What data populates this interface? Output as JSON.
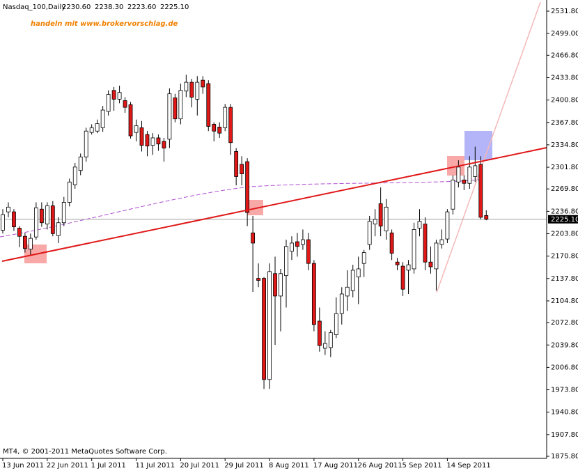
{
  "chart_data": {
    "type": "candlestick",
    "symbol": "Nasdaq_100,Daily",
    "header_values": [
      "2230.60",
      "2238.30",
      "2223.60",
      "2225.10"
    ],
    "watermark": "handeln mit www.brokervorschlag.de",
    "copyright": "MT4, © 2001-2011 MetaQuotes Software Corp.",
    "up_color": "#ffffff",
    "down_color": "#e01818",
    "categories": [
      "13 Jun 2011",
      null,
      null,
      null,
      null,
      null,
      null,
      null,
      "22 Jun 2011",
      null,
      null,
      null,
      null,
      null,
      null,
      null,
      "1 Jul 2011",
      null,
      null,
      null,
      null,
      null,
      null,
      null,
      "11 Jul 2011",
      null,
      null,
      null,
      null,
      null,
      null,
      null,
      "20 Jul 2011",
      null,
      null,
      null,
      null,
      null,
      null,
      null,
      "29 Jul 2011",
      null,
      null,
      null,
      null,
      null,
      null,
      null,
      "8 Aug 2011",
      null,
      null,
      null,
      null,
      null,
      null,
      null,
      "17 Aug 2011",
      null,
      null,
      null,
      null,
      null,
      null,
      null,
      "26 Aug 2011",
      null,
      null,
      null,
      null,
      null,
      null,
      null,
      "5 Sep 2011",
      null,
      null,
      null,
      null,
      null,
      null,
      null,
      "14 Sep 2011",
      null,
      null,
      null,
      null,
      null,
      null,
      null
    ],
    "open": [
      2209,
      2236,
      2236,
      2212,
      2200,
      2181,
      2199,
      2240,
      2218,
      2245,
      2201,
      2220,
      2250,
      2276,
      2297,
      2317,
      2353,
      2355,
      2360,
      2384,
      2415,
      2402,
      2400,
      2394,
      2353,
      2360,
      2350,
      2334,
      2345,
      2340,
      2343,
      2404,
      2373,
      2414,
      2427,
      2402,
      2430,
      2425,
      2365,
      2361,
      2360,
      2390,
      2325,
      2306,
      2310,
      2205,
      2138,
      2138,
      1989,
      2145,
      2112,
      2142,
      2178,
      2192,
      2188,
      2195,
      2160,
      2075,
      2035,
      2036,
      2055,
      2086,
      2112,
      2120,
      2140,
      2160,
      2188,
      2218,
      2248,
      2208,
      2205,
      2162,
      2156,
      2150,
      2152,
      2212,
      2218,
      2162,
      2152,
      2188,
      2196,
      2240,
      2280,
      2283,
      2278,
      2288,
      2306,
      2230.6
    ],
    "high": [
      2240,
      2250,
      2240,
      2215,
      2205,
      2204,
      2250,
      2250,
      2250,
      2252,
      2228,
      2258,
      2285,
      2308,
      2322,
      2360,
      2365,
      2372,
      2392,
      2415,
      2420,
      2422,
      2405,
      2398,
      2372,
      2370,
      2355,
      2352,
      2350,
      2345,
      2418,
      2410,
      2425,
      2438,
      2432,
      2436,
      2436,
      2430,
      2368,
      2368,
      2395,
      2395,
      2330,
      2318,
      2315,
      2230,
      2160,
      2140,
      2160,
      2170,
      2152,
      2195,
      2200,
      2205,
      2210,
      2205,
      2165,
      2095,
      2060,
      2062,
      2110,
      2125,
      2150,
      2158,
      2170,
      2180,
      2230,
      2240,
      2272,
      2255,
      2210,
      2168,
      2162,
      2165,
      2220,
      2240,
      2228,
      2185,
      2195,
      2210,
      2240,
      2290,
      2312,
      2290,
      2318,
      2332,
      2318,
      2238.3
    ],
    "low": [
      2204,
      2228,
      2208,
      2184,
      2176,
      2173,
      2195,
      2214,
      2210,
      2200,
      2190,
      2215,
      2244,
      2270,
      2290,
      2310,
      2350,
      2352,
      2354,
      2378,
      2385,
      2396,
      2382,
      2344,
      2340,
      2325,
      2318,
      2320,
      2326,
      2310,
      2330,
      2368,
      2365,
      2405,
      2390,
      2378,
      2410,
      2355,
      2340,
      2345,
      2355,
      2320,
      2275,
      2275,
      2215,
      2118,
      2125,
      1975,
      1975,
      2040,
      2060,
      2095,
      2165,
      2170,
      2180,
      2150,
      2060,
      2030,
      2025,
      2022,
      2050,
      2070,
      2090,
      2110,
      2100,
      2140,
      2180,
      2200,
      2200,
      2195,
      2165,
      2150,
      2112,
      2115,
      2145,
      2200,
      2150,
      2145,
      2120,
      2182,
      2190,
      2232,
      2272,
      2268,
      2270,
      2280,
      2225,
      2223.6
    ],
    "close": [
      2232,
      2243,
      2214,
      2200,
      2182,
      2197,
      2242,
      2220,
      2245,
      2204,
      2220,
      2250,
      2280,
      2302,
      2317,
      2355,
      2360,
      2366,
      2386,
      2409,
      2402,
      2412,
      2390,
      2348,
      2363,
      2334,
      2333,
      2345,
      2336,
      2330,
      2410,
      2373,
      2415,
      2427,
      2405,
      2427,
      2420,
      2362,
      2355,
      2352,
      2390,
      2338,
      2288,
      2292,
      2235,
      2190,
      2135,
      1989,
      2148,
      2112,
      2145,
      2185,
      2190,
      2185,
      2195,
      2160,
      2070,
      2039,
      2042,
      2058,
      2086,
      2115,
      2125,
      2150,
      2152,
      2176,
      2222,
      2225,
      2215,
      2243,
      2175,
      2158,
      2122,
      2158,
      2210,
      2222,
      2162,
      2155,
      2190,
      2195,
      2236,
      2283,
      2302,
      2278,
      2302,
      2304,
      2228,
      2225.1
    ],
    "last_price": {
      "value": 2225.1,
      "label": "2225.10"
    },
    "ylim": [
      1875.8,
      2531.8
    ],
    "yticks": [
      {
        "value": 1875.8,
        "label": "1875.80"
      },
      {
        "value": 1907.8,
        "label": "1907.80"
      },
      {
        "value": 1940.8,
        "label": "1940.80"
      },
      {
        "value": 1973.8,
        "label": "1973.80"
      },
      {
        "value": 2006.8,
        "label": "2006.80"
      },
      {
        "value": 2039.8,
        "label": "2039.80"
      },
      {
        "value": 2072.8,
        "label": "2072.80"
      },
      {
        "value": 2104.8,
        "label": "2104.80"
      },
      {
        "value": 2137.8,
        "label": "2137.80"
      },
      {
        "value": 2170.8,
        "label": "2170.80"
      },
      {
        "value": 2203.8,
        "label": "2203.80"
      },
      {
        "value": 2236.8,
        "label": "2236.80"
      },
      {
        "value": 2269.8,
        "label": "2269.80"
      },
      {
        "value": 2301.8,
        "label": "2301.80"
      },
      {
        "value": 2334.8,
        "label": "2334.80"
      },
      {
        "value": 2367.8,
        "label": "2367.80"
      },
      {
        "value": 2400.8,
        "label": "2400.80"
      },
      {
        "value": 2433.8,
        "label": "2433.80"
      },
      {
        "value": 2466.8,
        "label": "2466.80"
      },
      {
        "value": 2499.0,
        "label": "2499.00"
      },
      {
        "value": 2531.8,
        "label": "2531.80"
      }
    ]
  }
}
